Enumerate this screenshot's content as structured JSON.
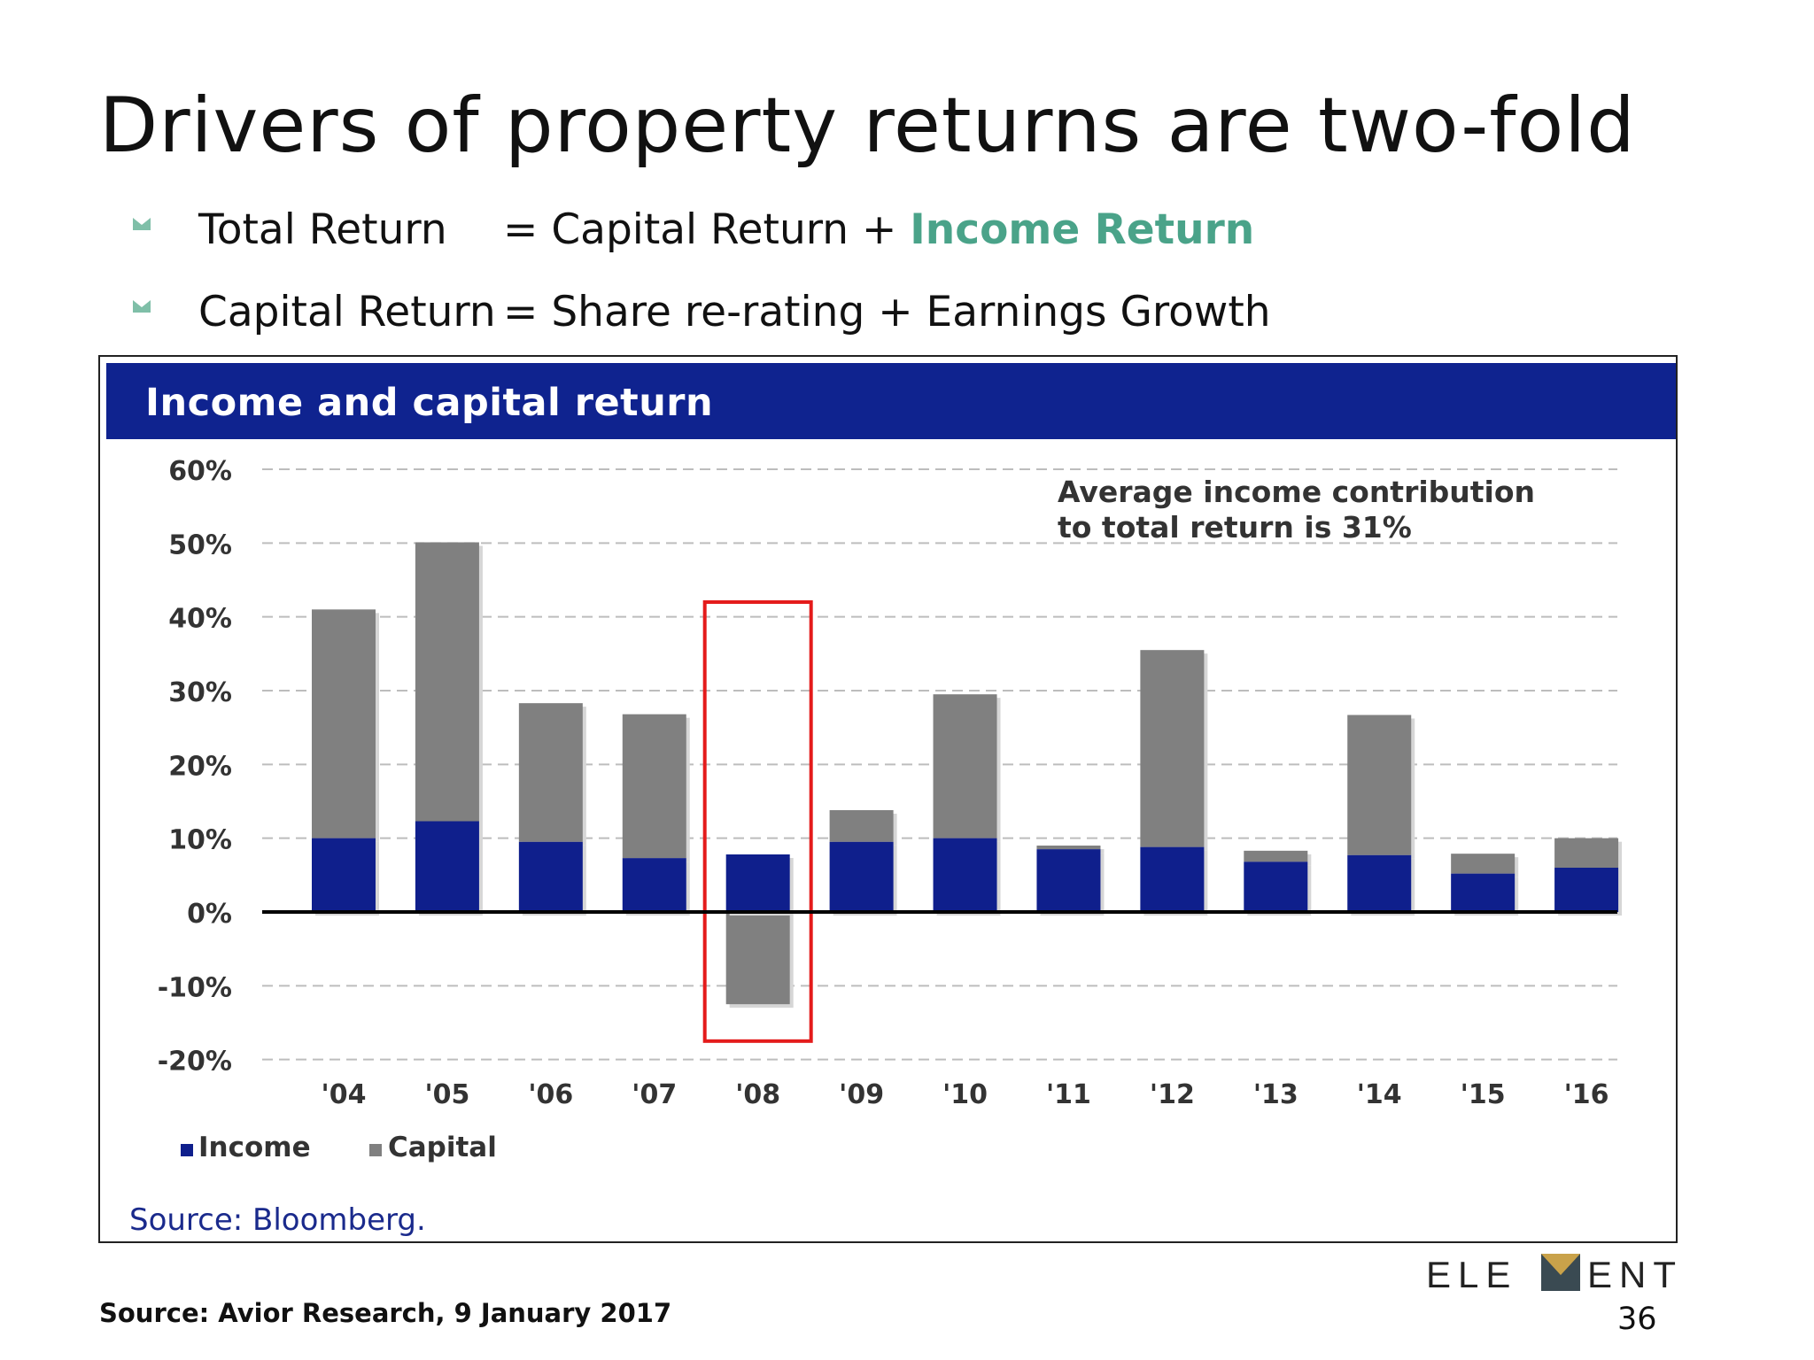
{
  "slide": {
    "title": "Drivers of property returns are two-fold",
    "bullets": [
      {
        "lhs": "Total Return",
        "eq": "= Capital Return + ",
        "highlight": "Income Return"
      },
      {
        "lhs": "Capital Return",
        "eq": "= Share re-rating + Earnings Growth",
        "highlight": ""
      }
    ],
    "footnote": "Source: Avior Research, 9 January 2017",
    "page_number": "36",
    "logo_text_left": "ELE",
    "logo_text_right": "ENT"
  },
  "colors": {
    "header_bg": "#0f238f",
    "income": "#0f1f8c",
    "capital": "#808080",
    "highlight": "#4aa389",
    "callout_box": "#e41b1b"
  },
  "chart_data": {
    "type": "bar",
    "stacked": true,
    "title": "Income and capital return",
    "categories": [
      "'04",
      "'05",
      "'06",
      "'07",
      "'08",
      "'09",
      "'10",
      "'11",
      "'12",
      "'13",
      "'14",
      "'15",
      "'16"
    ],
    "series": [
      {
        "name": "Income",
        "values": [
          10,
          12.3,
          9.5,
          7.3,
          7.8,
          9.5,
          10,
          8.5,
          8.8,
          6.8,
          7.7,
          5.2,
          6
        ]
      },
      {
        "name": "Capital",
        "values": [
          31,
          37.8,
          18.8,
          19.5,
          -12.5,
          4.3,
          19.5,
          0.5,
          26.7,
          1.5,
          19,
          2.7,
          4
        ]
      }
    ],
    "ylim": [
      -20,
      60
    ],
    "yticks": [
      60,
      50,
      40,
      30,
      20,
      10,
      0,
      -10,
      -20
    ],
    "ytick_labels": [
      "60%",
      "50%",
      "40%",
      "30%",
      "20%",
      "10%",
      "0%",
      "-10%",
      "-20%"
    ],
    "grid": "dashed horizontal",
    "legend_position": "bottom-left",
    "annotation": [
      "Average income contribution",
      "to total return is 31%"
    ],
    "highlighted_category": "'08",
    "source": "Source:  Bloomberg."
  }
}
